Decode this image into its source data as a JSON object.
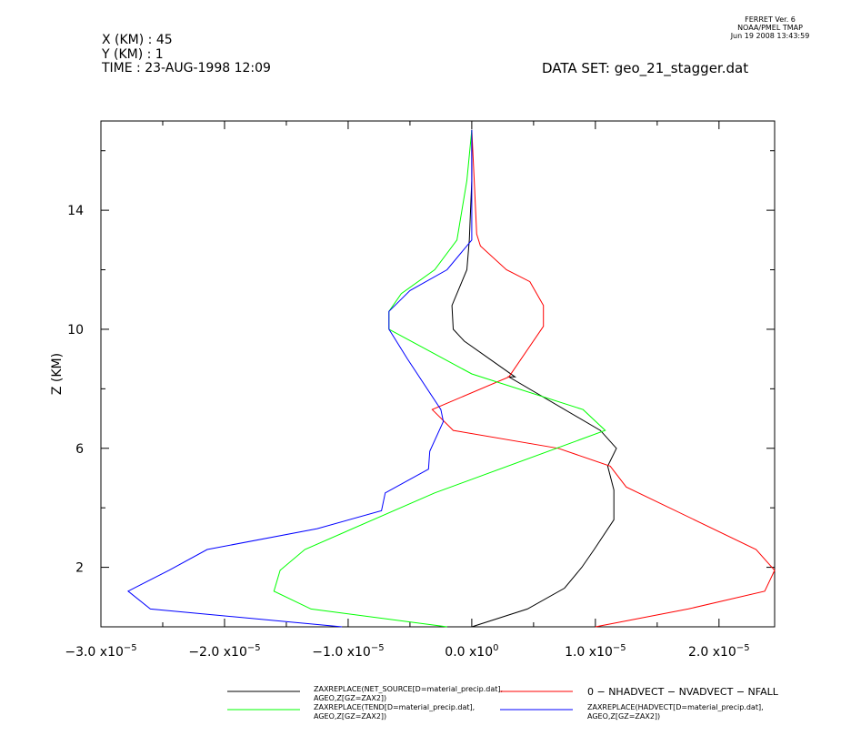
{
  "header": {
    "x_line": "X (KM) : 45",
    "y_line": "Y (KM) : 1",
    "time_line": "TIME : 23-AUG-1998 12:09",
    "dataset_line": "DATA SET: geo_21_stagger.dat",
    "ferret_version": "FERRET Ver. 6",
    "ferret_org": "NOAA/PMEL TMAP",
    "ferret_date": "Jun 19 2008 13:43:59"
  },
  "chart_data": {
    "type": "line",
    "title": "",
    "xlabel": "",
    "ylabel": "Z (KM)",
    "xlim": [
      -3e-05,
      2.45e-05
    ],
    "ylim": [
      0.0,
      17.0
    ],
    "x_ticks": [
      {
        "value": -3e-05,
        "mant": "−3.0 x10",
        "exp": "−5"
      },
      {
        "value": -2e-05,
        "mant": "−2.0 x10",
        "exp": "−5"
      },
      {
        "value": -1e-05,
        "mant": "−1.0 x10",
        "exp": "−5"
      },
      {
        "value": 0.0,
        "mant": "0.0 x10",
        "exp": "0"
      },
      {
        "value": 1e-05,
        "mant": "1.0 x10",
        "exp": "−5"
      },
      {
        "value": 2e-05,
        "mant": "2.0 x10",
        "exp": "−5"
      }
    ],
    "x_minor_ticks": [
      -2.5e-05,
      -1.5e-05,
      -5e-06,
      5e-06,
      1.5e-05
    ],
    "y_ticks": [
      {
        "value": 2,
        "label": "2"
      },
      {
        "value": 6,
        "label": "6"
      },
      {
        "value": 10,
        "label": "10"
      },
      {
        "value": 14,
        "label": "14"
      }
    ],
    "y_minor_ticks": [
      4,
      8,
      12,
      16
    ],
    "grid": false,
    "legend_position": "bottom",
    "series": [
      {
        "name_lines": [
          "ZAXREPLACE(NET_SOURCE[D=material_precip.dat],",
          "AGEO,Z[GZ=ZAX2])"
        ],
        "color": "#000000",
        "x": [
          0.0,
          4.5e-06,
          7.5e-06,
          8.9e-06,
          9.9e-06,
          1.15e-05,
          1.15e-05,
          1.1e-05,
          1.17e-05,
          1.04e-05,
          3e-06,
          3.5e-06,
          -6e-07,
          -1.5e-06,
          -1.6e-06,
          -4e-07,
          -2e-07,
          0.0,
          0.0
        ],
        "y": [
          0.0,
          0.6,
          1.3,
          2.0,
          2.6,
          3.6,
          4.6,
          5.4,
          6.0,
          6.6,
          8.4,
          8.4,
          9.6,
          10.0,
          10.8,
          12.0,
          13.0,
          15.0,
          16.7
        ]
      },
      {
        "name_lines": [
          "0 − NHADVECT − NVADVECT − NFALL"
        ],
        "color": "#ff0000",
        "x": [
          1e-05,
          1.75e-05,
          2.37e-05,
          2.45e-05,
          2.3e-05,
          1.25e-05,
          1.12e-05,
          7e-06,
          -1.5e-06,
          -3.2e-06,
          3e-06,
          5.8e-06,
          5.8e-06,
          4.7e-06,
          2.8e-06,
          7e-07,
          4e-07,
          2e-07,
          0.0
        ],
        "y": [
          0.0,
          0.6,
          1.2,
          1.9,
          2.6,
          4.7,
          5.4,
          6.0,
          6.6,
          7.3,
          8.4,
          10.1,
          10.8,
          11.6,
          12.0,
          12.8,
          13.2,
          15.0,
          16.7
        ]
      },
      {
        "name_lines": [
          "ZAXREPLACE(TEND[D=material_precip.dat],",
          "AGEO,Z[GZ=ZAX2])"
        ],
        "color": "#00ff00",
        "x": [
          -2e-06,
          -1.3e-05,
          -1.6e-05,
          -1.55e-05,
          -1.35e-05,
          -3e-06,
          1.08e-05,
          9e-06,
          0.0,
          -6.7e-06,
          -6.7e-06,
          -5.7e-06,
          -3e-06,
          -1.2e-06,
          -4e-07,
          0.0
        ],
        "y": [
          0.0,
          0.6,
          1.2,
          1.9,
          2.6,
          4.5,
          6.6,
          7.3,
          8.5,
          10.0,
          10.6,
          11.2,
          12.0,
          13.0,
          15.0,
          16.7
        ]
      },
      {
        "name_lines": [
          "ZAXREPLACE(HADVECT[D=material_precip.dat],",
          "AGEO,Z[GZ=ZAX2])"
        ],
        "color": "#0000ff",
        "x": [
          -1.05e-05,
          -2.6e-05,
          -2.78e-05,
          -2.45e-05,
          -2.14e-05,
          -1.25e-05,
          -7.3e-06,
          -7e-06,
          -3.5e-06,
          -3.4e-06,
          -2.3e-06,
          -2.5e-06,
          -5.2e-06,
          -6.7e-06,
          -6.7e-06,
          -5e-06,
          -2e-06,
          0.0,
          0.0
        ],
        "y": [
          0.0,
          0.6,
          1.2,
          1.9,
          2.6,
          3.3,
          3.9,
          4.5,
          5.3,
          5.9,
          6.9,
          7.3,
          9.0,
          10.0,
          10.6,
          11.3,
          12.0,
          13.0,
          16.7
        ]
      }
    ]
  }
}
